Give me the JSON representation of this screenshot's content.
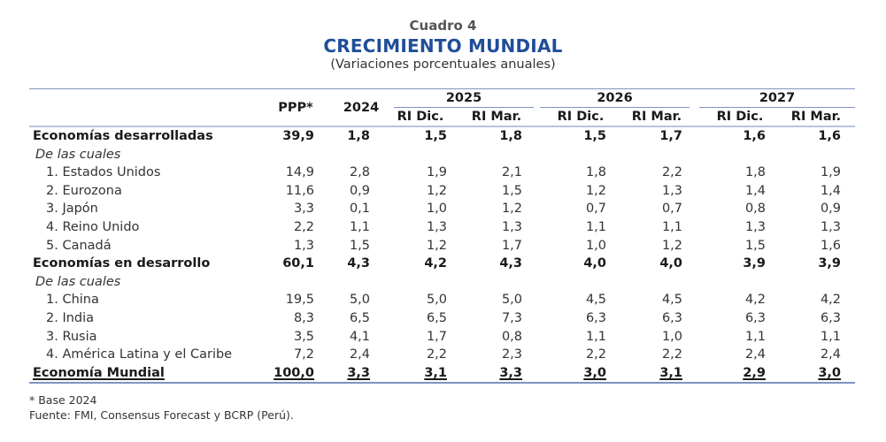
{
  "header": {
    "label": "Cuadro 4",
    "title": "CRECIMIENTO MUNDIAL",
    "subtitle": "(Variaciones porcentuales anuales)"
  },
  "table": {
    "columns": {
      "ppp": "PPP*",
      "y2024": "2024",
      "groups": [
        {
          "year": "2025",
          "sub": [
            "RI Dic.",
            "RI Mar."
          ]
        },
        {
          "year": "2026",
          "sub": [
            "RI Dic.",
            "RI Mar."
          ]
        },
        {
          "year": "2027",
          "sub": [
            "RI Dic.",
            "RI Mar."
          ]
        }
      ]
    },
    "rows": [
      {
        "label": "Economías desarrolladas",
        "style": "bold",
        "values": [
          "39,9",
          "1,8",
          "1,5",
          "1,8",
          "1,5",
          "1,7",
          "1,6",
          "1,6"
        ]
      },
      {
        "label": "De las cuales",
        "style": "italic",
        "values": []
      },
      {
        "label": "1. Estados Unidos",
        "style": "item",
        "values": [
          "14,9",
          "2,8",
          "1,9",
          "2,1",
          "1,8",
          "2,2",
          "1,8",
          "1,9"
        ]
      },
      {
        "label": "2. Eurozona",
        "style": "item",
        "values": [
          "11,6",
          "0,9",
          "1,2",
          "1,5",
          "1,2",
          "1,3",
          "1,4",
          "1,4"
        ]
      },
      {
        "label": "3. Japón",
        "style": "item",
        "values": [
          "3,3",
          "0,1",
          "1,0",
          "1,2",
          "0,7",
          "0,7",
          "0,8",
          "0,9"
        ]
      },
      {
        "label": "4. Reino Unido",
        "style": "item",
        "values": [
          "2,2",
          "1,1",
          "1,3",
          "1,3",
          "1,1",
          "1,1",
          "1,3",
          "1,3"
        ]
      },
      {
        "label": "5. Canadá",
        "style": "item",
        "values": [
          "1,3",
          "1,5",
          "1,2",
          "1,7",
          "1,0",
          "1,2",
          "1,5",
          "1,6"
        ]
      },
      {
        "label": "Economías en desarrollo",
        "style": "bold",
        "values": [
          "60,1",
          "4,3",
          "4,2",
          "4,3",
          "4,0",
          "4,0",
          "3,9",
          "3,9"
        ]
      },
      {
        "label": "De las cuales",
        "style": "italic",
        "values": []
      },
      {
        "label": "1. China",
        "style": "item",
        "values": [
          "19,5",
          "5,0",
          "5,0",
          "5,0",
          "4,5",
          "4,5",
          "4,2",
          "4,2"
        ]
      },
      {
        "label": "2. India",
        "style": "item",
        "values": [
          "8,3",
          "6,5",
          "6,5",
          "7,3",
          "6,3",
          "6,3",
          "6,3",
          "6,3"
        ]
      },
      {
        "label": "3. Rusia",
        "style": "item",
        "values": [
          "3,5",
          "4,1",
          "1,7",
          "0,8",
          "1,1",
          "1,0",
          "1,1",
          "1,1"
        ]
      },
      {
        "label": "4. América Latina y el Caribe",
        "style": "item",
        "values": [
          "7,2",
          "2,4",
          "2,2",
          "2,3",
          "2,2",
          "2,2",
          "2,4",
          "2,4"
        ]
      },
      {
        "label": "Economía Mundial",
        "style": "total",
        "values": [
          "100,0",
          "3,3",
          "3,1",
          "3,3",
          "3,0",
          "3,1",
          "2,9",
          "3,0"
        ]
      }
    ]
  },
  "footnotes": {
    "base": "* Base 2024",
    "source": "Fuente:  FMI, Consensus Forecast y BCRP (Perú)."
  },
  "colors": {
    "title": "#1f4e99",
    "rule": "#7f93c2"
  }
}
